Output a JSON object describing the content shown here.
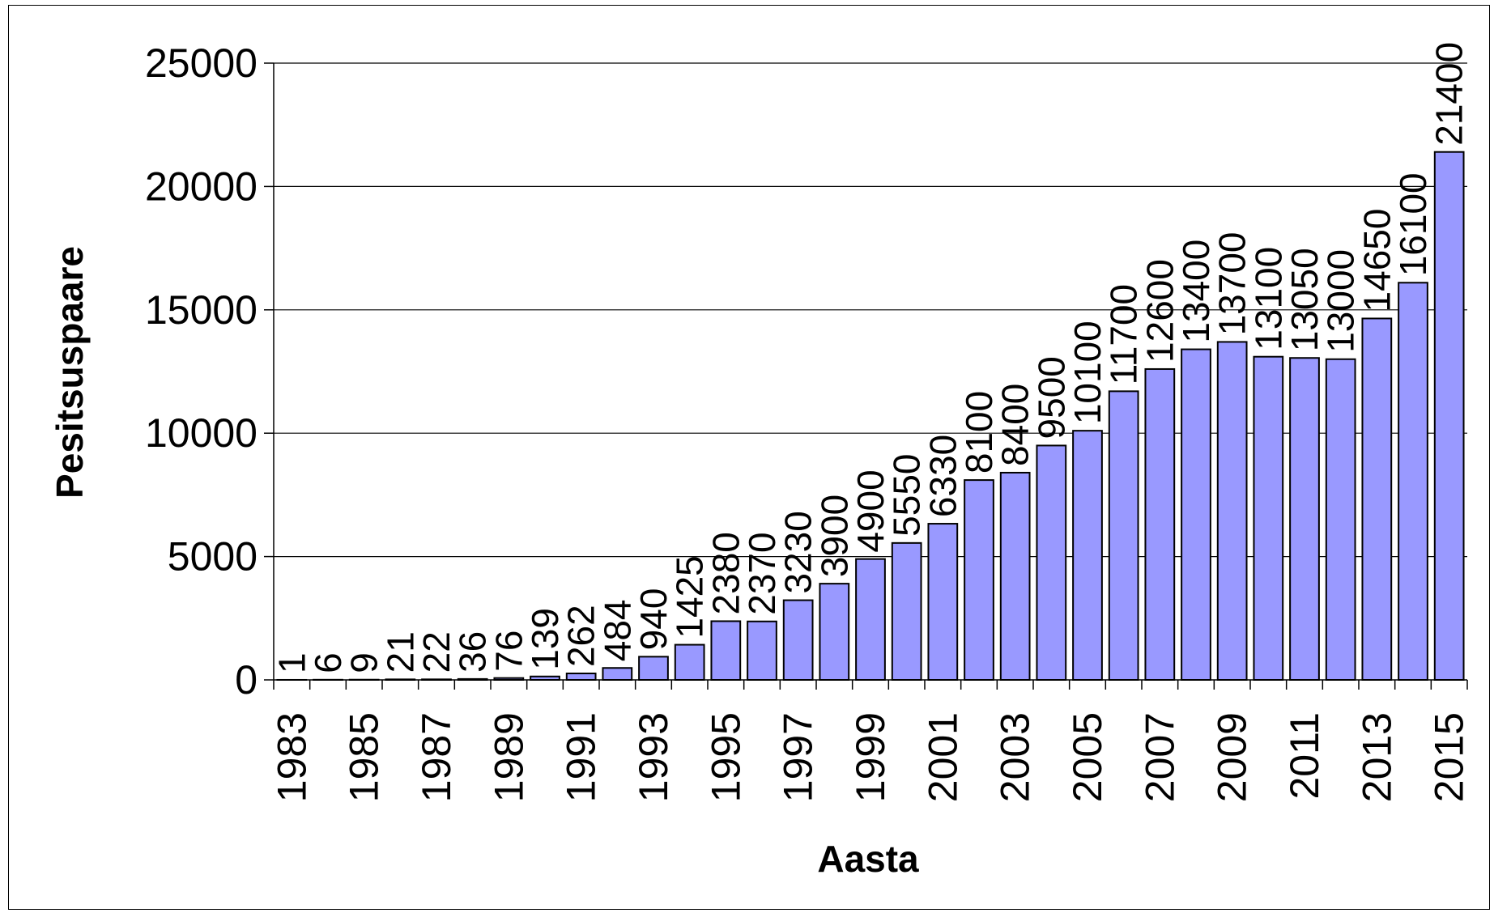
{
  "chart_data": {
    "type": "bar",
    "xlabel": "Aasta",
    "ylabel": "Pesitsuspaare",
    "ylim": [
      0,
      25000
    ],
    "yticks": [
      0,
      5000,
      10000,
      15000,
      20000,
      25000
    ],
    "grid": true,
    "legend": "none",
    "bar_color": "#9999FF",
    "categories": [
      "1983",
      "1984",
      "1985",
      "1986",
      "1987",
      "1988",
      "1989",
      "1990",
      "1991",
      "1992",
      "1993",
      "1994",
      "1995",
      "1996",
      "1997",
      "1998",
      "1999",
      "2000",
      "2001",
      "2002",
      "2003",
      "2004",
      "2005",
      "2006",
      "2007",
      "2008",
      "2009",
      "2010",
      "2011",
      "2012",
      "2013",
      "2014",
      "2015"
    ],
    "x_tick_labels": [
      "1983",
      "1985",
      "1987",
      "1989",
      "1991",
      "1993",
      "1995",
      "1997",
      "1999",
      "2001",
      "2003",
      "2005",
      "2007",
      "2009",
      "2011",
      "2013",
      "2015"
    ],
    "values": [
      1,
      6,
      9,
      21,
      22,
      36,
      76,
      139,
      262,
      484,
      940,
      1425,
      2380,
      2370,
      3230,
      3900,
      4900,
      5550,
      6330,
      8100,
      8400,
      9500,
      10100,
      11700,
      12600,
      13400,
      13700,
      13100,
      13050,
      13000,
      14650,
      16100,
      21400
    ]
  }
}
